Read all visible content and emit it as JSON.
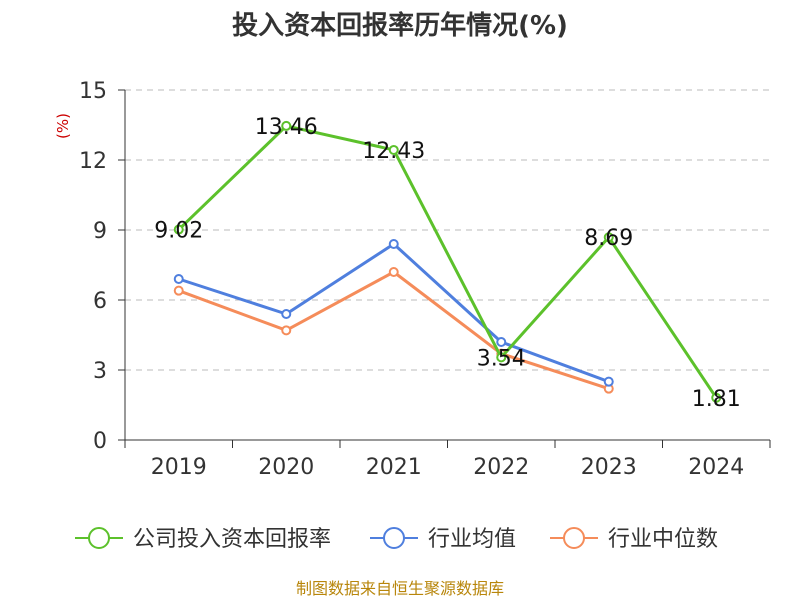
{
  "chart_data": {
    "type": "line",
    "title": "投入资本回报率历年情况(%)",
    "ylabel": "(%)",
    "xlabel": "",
    "categories": [
      "2019",
      "2020",
      "2021",
      "2022",
      "2023",
      "2024"
    ],
    "ylim": [
      0,
      15
    ],
    "yticks": [
      0,
      3,
      6,
      9,
      12,
      15
    ],
    "grid": true,
    "legend_position": "bottom",
    "series": [
      {
        "name": "公司投入资本回报率",
        "color": "#5cc12b",
        "values": [
          9.02,
          13.46,
          12.43,
          3.54,
          8.69,
          1.81
        ],
        "labels": [
          "9.02",
          "13.46",
          "12.43",
          "3.54",
          "8.69",
          "1.81"
        ]
      },
      {
        "name": "行业均值",
        "color": "#4f7fde",
        "values": [
          6.9,
          5.4,
          8.4,
          4.2,
          2.5,
          null
        ]
      },
      {
        "name": "行业中位数",
        "color": "#f58c5a",
        "values": [
          6.4,
          4.7,
          7.2,
          3.7,
          2.2,
          null
        ]
      }
    ]
  },
  "source": "制图数据来自恒生聚源数据库"
}
